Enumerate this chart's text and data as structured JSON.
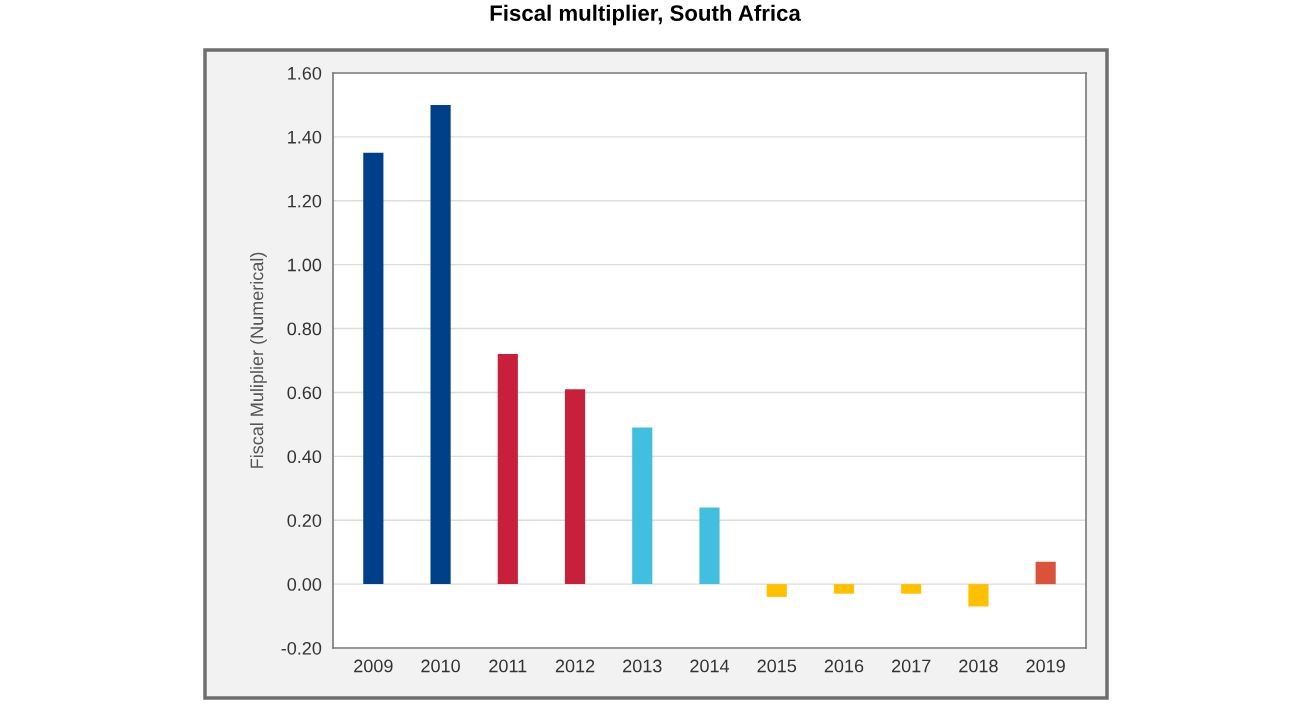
{
  "chart_data": {
    "type": "bar",
    "title": "Fiscal multiplier, South Africa",
    "ylabel": "Fiscal Muliplier (Numerical)",
    "categories": [
      "2009",
      "2010",
      "2011",
      "2012",
      "2013",
      "2014",
      "2015",
      "2016",
      "2017",
      "2018",
      "2019"
    ],
    "values": [
      1.35,
      1.5,
      0.72,
      0.61,
      0.49,
      0.24,
      -0.04,
      -0.03,
      -0.03,
      -0.07,
      0.07
    ],
    "colors": [
      "#003f8a",
      "#003f8a",
      "#c8203a",
      "#c8203a",
      "#41bfdf",
      "#41bfdf",
      "#ffc000",
      "#ffc000",
      "#ffc000",
      "#ffc000",
      "#d9533a"
    ],
    "ylim": [
      -0.2,
      1.6
    ],
    "yticks": [
      {
        "value": -0.2,
        "label": "-0.20"
      },
      {
        "value": 0,
        "label": "0.00"
      },
      {
        "value": 0.2,
        "label": "0.20"
      },
      {
        "value": 0.4,
        "label": "0.40"
      },
      {
        "value": 0.6,
        "label": "0.60"
      },
      {
        "value": 0.8,
        "label": "0.80"
      },
      {
        "value": 1.0,
        "label": "1.00"
      },
      {
        "value": 1.2,
        "label": "1.20"
      },
      {
        "value": 1.4,
        "label": "1.40"
      },
      {
        "value": 1.6,
        "label": "1.60"
      }
    ],
    "grid": "y"
  }
}
